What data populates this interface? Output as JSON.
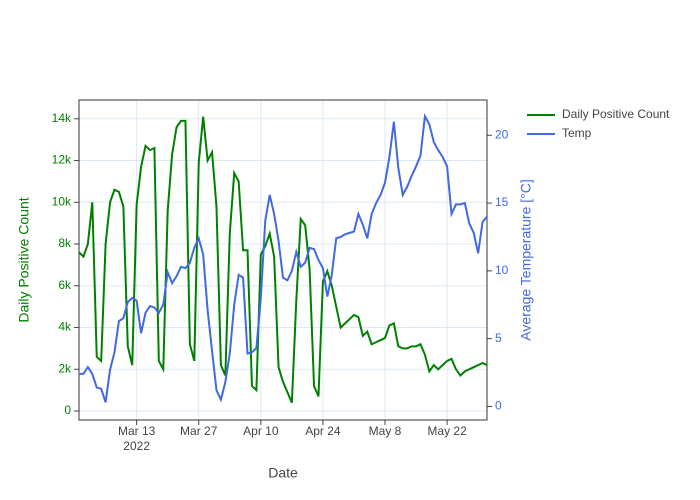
{
  "chart_data": {
    "type": "line",
    "x_label": "Date",
    "y_label": "Daily Positive Count",
    "y2_label": "Average Temperature [°C]",
    "x": [
      "2022-02-28",
      "2022-03-01",
      "2022-03-02",
      "2022-03-03",
      "2022-03-04",
      "2022-03-05",
      "2022-03-06",
      "2022-03-07",
      "2022-03-08",
      "2022-03-09",
      "2022-03-10",
      "2022-03-11",
      "2022-03-12",
      "2022-03-13",
      "2022-03-14",
      "2022-03-15",
      "2022-03-16",
      "2022-03-17",
      "2022-03-18",
      "2022-03-19",
      "2022-03-20",
      "2022-03-21",
      "2022-03-22",
      "2022-03-23",
      "2022-03-24",
      "2022-03-25",
      "2022-03-26",
      "2022-03-27",
      "2022-03-28",
      "2022-03-29",
      "2022-03-30",
      "2022-03-31",
      "2022-04-01",
      "2022-04-02",
      "2022-04-03",
      "2022-04-04",
      "2022-04-05",
      "2022-04-06",
      "2022-04-07",
      "2022-04-08",
      "2022-04-09",
      "2022-04-10",
      "2022-04-11",
      "2022-04-12",
      "2022-04-13",
      "2022-04-14",
      "2022-04-15",
      "2022-04-16",
      "2022-04-17",
      "2022-04-18",
      "2022-04-19",
      "2022-04-20",
      "2022-04-21",
      "2022-04-22",
      "2022-04-23",
      "2022-04-24",
      "2022-04-25",
      "2022-04-26",
      "2022-04-27",
      "2022-04-28",
      "2022-04-29",
      "2022-04-30",
      "2022-05-01",
      "2022-05-02",
      "2022-05-03",
      "2022-05-04",
      "2022-05-05",
      "2022-05-06",
      "2022-05-07",
      "2022-05-08",
      "2022-05-09",
      "2022-05-10",
      "2022-05-11",
      "2022-05-12",
      "2022-05-13",
      "2022-05-14",
      "2022-05-15",
      "2022-05-16",
      "2022-05-17",
      "2022-05-18",
      "2022-05-19",
      "2022-05-20",
      "2022-05-21",
      "2022-05-22",
      "2022-05-23",
      "2022-05-24",
      "2022-05-25",
      "2022-05-26",
      "2022-05-27",
      "2022-05-28",
      "2022-05-29",
      "2022-05-30",
      "2022-05-31"
    ],
    "series": [
      {
        "name": "Daily Positive Count",
        "color": "#008000",
        "axis": "y",
        "values": [
          7600,
          7400,
          8000,
          10000,
          2600,
          2400,
          8000,
          10000,
          10600,
          10500,
          9800,
          3100,
          2200,
          9900,
          11700,
          12700,
          12500,
          12600,
          2400,
          2000,
          9600,
          12300,
          13600,
          13900,
          13900,
          3200,
          2400,
          11900,
          14100,
          12000,
          12400,
          9800,
          2200,
          1700,
          8500,
          11400,
          11000,
          7700,
          7700,
          1200,
          1000,
          7500,
          7900,
          8500,
          7400,
          2100,
          1400,
          900,
          400,
          5300,
          9200,
          8900,
          6800,
          1200,
          700,
          6200,
          6700,
          6000,
          5000,
          4000,
          4200,
          4400,
          4600,
          4500,
          3600,
          3800,
          3200,
          3300,
          3400,
          3500,
          4100,
          4200,
          3100,
          3000,
          3000,
          3100,
          3100,
          3200,
          2700,
          1900,
          2200,
          2000,
          2200,
          2400,
          2500,
          2000,
          1700,
          1900,
          2000,
          2100,
          2200,
          2300,
          2200
        ]
      },
      {
        "name": "Temp",
        "color": "#4169e1",
        "axis": "y2",
        "values": [
          2.4,
          2.4,
          2.9,
          2.4,
          1.4,
          1.3,
          0.3,
          2.7,
          4.0,
          6.3,
          6.5,
          7.7,
          8.0,
          7.8,
          5.4,
          6.9,
          7.4,
          7.3,
          6.9,
          7.5,
          9.9,
          9.1,
          9.6,
          10.3,
          10.2,
          10.6,
          11.7,
          12.4,
          11.2,
          7.1,
          4.1,
          1.2,
          0.5,
          1.8,
          3.9,
          7.5,
          9.7,
          9.5,
          3.9,
          4.0,
          4.3,
          8.0,
          13.7,
          15.6,
          14.2,
          12.2,
          9.5,
          9.3,
          10.0,
          11.4,
          10.3,
          10.6,
          11.7,
          11.6,
          10.8,
          10.2,
          8.1,
          9.7,
          12.4,
          12.5,
          12.7,
          12.8,
          12.9,
          14.2,
          13.4,
          12.4,
          14.2,
          15.0,
          15.6,
          16.5,
          18.4,
          21.0,
          17.6,
          15.6,
          16.2,
          17.0,
          17.7,
          18.5,
          21.4,
          20.8,
          19.5,
          18.9,
          18.4,
          17.7,
          14.2,
          14.9,
          14.9,
          15.0,
          13.5,
          12.8,
          11.3,
          13.6,
          14.0
        ]
      }
    ],
    "xlim": [
      "2022-02-28",
      "2022-05-31"
    ],
    "xticks": [
      {
        "value": "2022-03-13",
        "label": "Mar 13"
      },
      {
        "value": "2022-03-27",
        "label": "Mar 27"
      },
      {
        "value": "2022-04-10",
        "label": "Apr 10"
      },
      {
        "value": "2022-04-24",
        "label": "Apr 24"
      },
      {
        "value": "2022-05-08",
        "label": "May 8"
      },
      {
        "value": "2022-05-22",
        "label": "May 22"
      }
    ],
    "x_tick_year": "2022",
    "ylim": [
      -430,
      14900
    ],
    "yticks": [
      {
        "value": 0,
        "label": "0"
      },
      {
        "value": 2000,
        "label": "2k"
      },
      {
        "value": 4000,
        "label": "4k"
      },
      {
        "value": 6000,
        "label": "6k"
      },
      {
        "value": 8000,
        "label": "8k"
      },
      {
        "value": 10000,
        "label": "10k"
      },
      {
        "value": 12000,
        "label": "12k"
      },
      {
        "value": 14000,
        "label": "14k"
      }
    ],
    "y2lim": [
      -1.0,
      22.6
    ],
    "y2ticks": [
      0,
      5,
      10,
      15,
      20
    ],
    "grid": true
  }
}
